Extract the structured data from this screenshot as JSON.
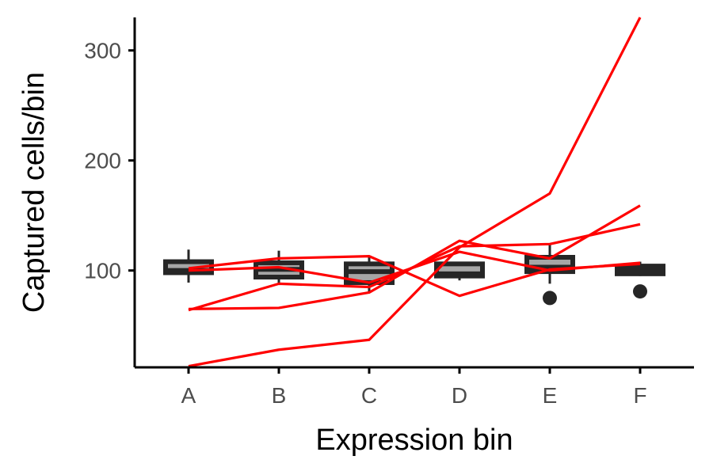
{
  "chart_data": {
    "type": "box",
    "title": "",
    "xlabel": "Expression bin",
    "ylabel": "Captured cells/bin",
    "categories": [
      "A",
      "B",
      "C",
      "D",
      "E",
      "F"
    ],
    "ylim": [
      12,
      330
    ],
    "yticks": [
      100,
      200,
      300
    ],
    "grid": false,
    "legend": "none",
    "box_fill": "#a6a6a6",
    "box_stroke": "#262626",
    "line_color": "#ff0000",
    "boxes": [
      {
        "category": "A",
        "whisker_low": 89,
        "q1": 98,
        "median": 100,
        "q3": 108,
        "whisker_high": 119,
        "outliers": []
      },
      {
        "category": "B",
        "whisker_low": 89,
        "q1": 94,
        "median": 101,
        "q3": 107,
        "whisker_high": 118,
        "outliers": []
      },
      {
        "category": "C",
        "whisker_low": 80,
        "q1": 89,
        "median": 99,
        "q3": 106,
        "whisker_high": 112,
        "outliers": []
      },
      {
        "category": "D",
        "whisker_low": 91,
        "q1": 95,
        "median": 97,
        "q3": 106,
        "whisker_high": 108,
        "outliers": []
      },
      {
        "category": "E",
        "whisker_low": 88,
        "q1": 99,
        "median": 103,
        "q3": 112,
        "whisker_high": 124,
        "outliers": [
          75
        ]
      },
      {
        "category": "F",
        "whisker_low": 95,
        "q1": 97,
        "median": 101,
        "q3": 104,
        "whisker_high": 108,
        "outliers": [
          81
        ]
      }
    ],
    "series": [
      {
        "values": [
          13,
          28,
          37,
          121,
          170,
          330
        ]
      },
      {
        "values": [
          65,
          66,
          80,
          127,
          111,
          159
        ]
      },
      {
        "values": [
          64,
          88,
          85,
          122,
          124,
          142
        ]
      },
      {
        "values": [
          100,
          103,
          89,
          117,
          100,
          107
        ]
      },
      {
        "values": [
          102,
          111,
          113,
          77,
          101,
          106
        ]
      }
    ]
  }
}
